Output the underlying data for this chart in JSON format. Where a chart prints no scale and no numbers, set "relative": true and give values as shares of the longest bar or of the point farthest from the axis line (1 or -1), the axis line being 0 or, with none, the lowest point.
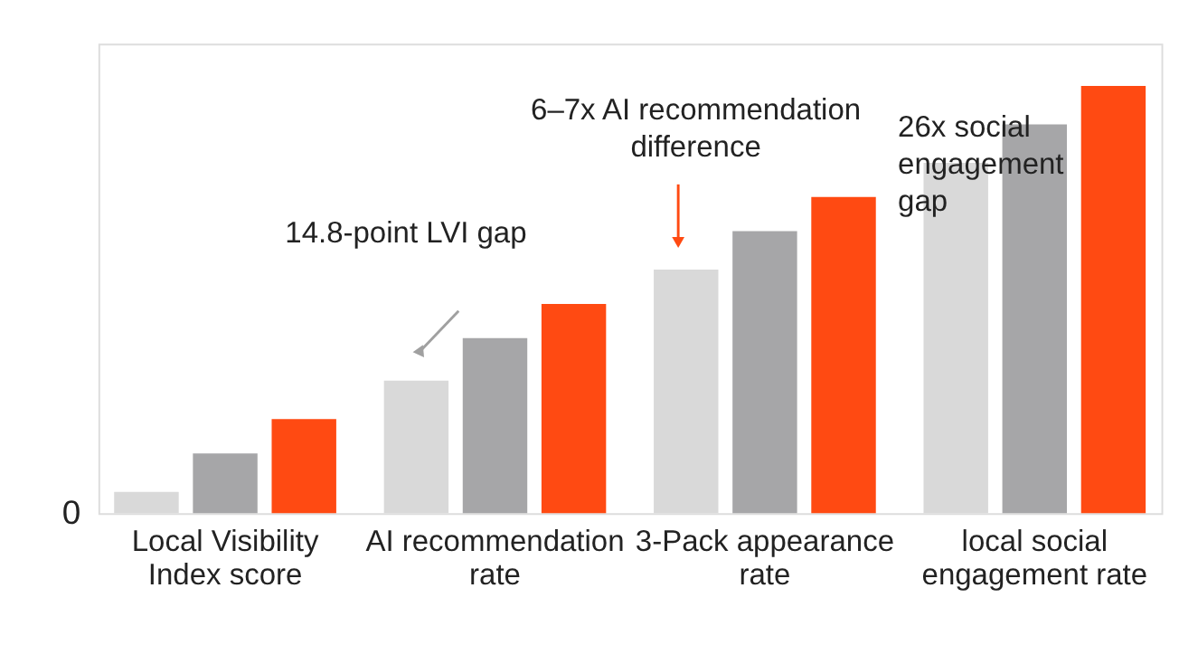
{
  "chart_data": {
    "type": "bar",
    "relative": true,
    "categories": [
      "Local Visibility Index score",
      "AI recommendation rate",
      "3-Pack appearance rate",
      "local social engagement rate"
    ],
    "series": [
      {
        "color": "#d9d9d9",
        "values": [
          0.05,
          0.31,
          0.57,
          0.82
        ]
      },
      {
        "color": "#a6a6a8",
        "values": [
          0.14,
          0.41,
          0.66,
          0.91
        ]
      },
      {
        "color": "#ff4a12",
        "values": [
          0.22,
          0.49,
          0.74,
          1.0
        ]
      }
    ],
    "annotations": [
      "0",
      "14.8-point LVI gap",
      "6–7x AI recommendation difference",
      "26x social engagement gap"
    ]
  }
}
